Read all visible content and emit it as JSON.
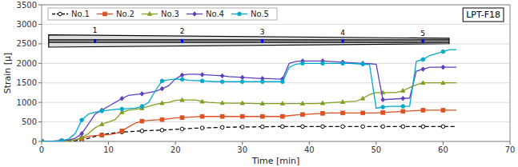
{
  "chart_data": {
    "type": "line",
    "title": "LPT-F18",
    "x_label": "Time [min]",
    "y_label": "Strain [μ]",
    "xlim": [
      0,
      70
    ],
    "ylim": [
      0,
      3500
    ],
    "xticks": [
      0,
      10,
      20,
      30,
      40,
      50,
      60,
      70
    ],
    "yticks": [
      0,
      500,
      1000,
      1500,
      2000,
      2500,
      3000,
      3500
    ],
    "grid": true,
    "legend": "upper left",
    "annotations": [
      "1",
      "2",
      "3",
      "4",
      "5"
    ],
    "x": [
      0,
      1,
      2,
      3,
      4,
      5,
      6,
      7,
      8,
      9,
      10,
      11,
      12,
      13,
      14,
      15,
      16,
      17,
      18,
      19,
      20,
      21,
      22,
      23,
      24,
      25,
      26,
      27,
      28,
      29,
      30,
      31,
      32,
      33,
      34,
      35,
      36,
      37,
      38,
      39,
      40,
      41,
      42,
      43,
      44,
      45,
      46,
      47,
      48,
      49,
      50,
      51,
      52,
      53,
      54,
      55,
      56,
      57,
      58,
      59,
      60,
      61,
      62
    ],
    "series": [
      {
        "name": "No.1",
        "color": "#000000",
        "line_style": "dashed",
        "marker": "circle",
        "values": [
          0,
          0,
          5,
          10,
          15,
          20,
          40,
          80,
          130,
          170,
          200,
          220,
          240,
          250,
          260,
          270,
          280,
          285,
          290,
          300,
          310,
          320,
          330,
          340,
          345,
          350,
          355,
          360,
          365,
          368,
          370,
          372,
          374,
          376,
          378,
          380,
          382,
          382,
          382,
          382,
          382,
          382,
          382,
          382,
          382,
          382,
          382,
          382,
          382,
          382,
          382,
          382,
          382,
          382,
          382,
          382,
          382,
          382,
          382,
          382,
          382,
          382,
          382
        ]
      },
      {
        "name": "No.2",
        "color": "#e05020",
        "line_style": "solid",
        "marker": "square",
        "values": [
          0,
          0,
          5,
          10,
          20,
          40,
          80,
          130,
          150,
          160,
          170,
          200,
          270,
          370,
          470,
          520,
          540,
          550,
          560,
          580,
          600,
          610,
          620,
          630,
          640,
          640,
          640,
          640,
          640,
          640,
          640,
          640,
          640,
          640,
          640,
          640,
          640,
          660,
          680,
          690,
          700,
          710,
          720,
          730,
          730,
          730,
          730,
          730,
          730,
          730,
          730,
          740,
          750,
          760,
          770,
          780,
          790,
          800,
          800,
          800,
          800,
          800,
          800
        ]
      },
      {
        "name": "No.3",
        "color": "#80a020",
        "line_style": "solid",
        "marker": "triangle",
        "values": [
          0,
          0,
          5,
          10,
          20,
          40,
          100,
          200,
          350,
          440,
          500,
          560,
          750,
          800,
          820,
          850,
          900,
          950,
          980,
          1000,
          1050,
          1060,
          1060,
          1060,
          1020,
          1000,
          990,
          985,
          980,
          980,
          980,
          975,
          970,
          970,
          970,
          970,
          970,
          970,
          970,
          970,
          970,
          970,
          980,
          990,
          1000,
          1010,
          1020,
          1030,
          1100,
          1200,
          1250,
          1250,
          1250,
          1250,
          1300,
          1380,
          1450,
          1500,
          1500,
          1500,
          1500,
          1500,
          1500
        ]
      },
      {
        "name": "No.4",
        "color": "#6040c0",
        "line_style": "solid",
        "marker": "diamond",
        "values": [
          0,
          0,
          10,
          20,
          40,
          80,
          200,
          450,
          700,
          800,
          900,
          1000,
          1100,
          1180,
          1200,
          1220,
          1250,
          1280,
          1350,
          1430,
          1600,
          1700,
          1720,
          1720,
          1710,
          1700,
          1690,
          1680,
          1660,
          1650,
          1640,
          1630,
          1620,
          1610,
          1610,
          1600,
          1600,
          2000,
          2050,
          2060,
          2060,
          2060,
          2060,
          2050,
          2040,
          2030,
          2020,
          2010,
          2000,
          1990,
          1980,
          1070,
          1080,
          1090,
          1100,
          1110,
          1800,
          1850,
          1900,
          1900,
          1900,
          1900,
          1900
        ]
      },
      {
        "name": "No.5",
        "color": "#00aacc",
        "line_style": "solid",
        "marker": "circle",
        "values": [
          0,
          0,
          5,
          20,
          60,
          200,
          550,
          700,
          750,
          780,
          800,
          820,
          830,
          840,
          850,
          900,
          1000,
          1300,
          1550,
          1580,
          1600,
          1590,
          1570,
          1560,
          1550,
          1540,
          1530,
          1530,
          1530,
          1530,
          1530,
          1530,
          1530,
          1530,
          1530,
          1530,
          1530,
          1900,
          1980,
          2000,
          2000,
          2000,
          2000,
          2000,
          2000,
          2000,
          2000,
          1990,
          1980,
          1970,
          850,
          880,
          900,
          900,
          900,
          900,
          2050,
          2100,
          2200,
          2250,
          2300,
          2350,
          2350
        ]
      }
    ]
  }
}
